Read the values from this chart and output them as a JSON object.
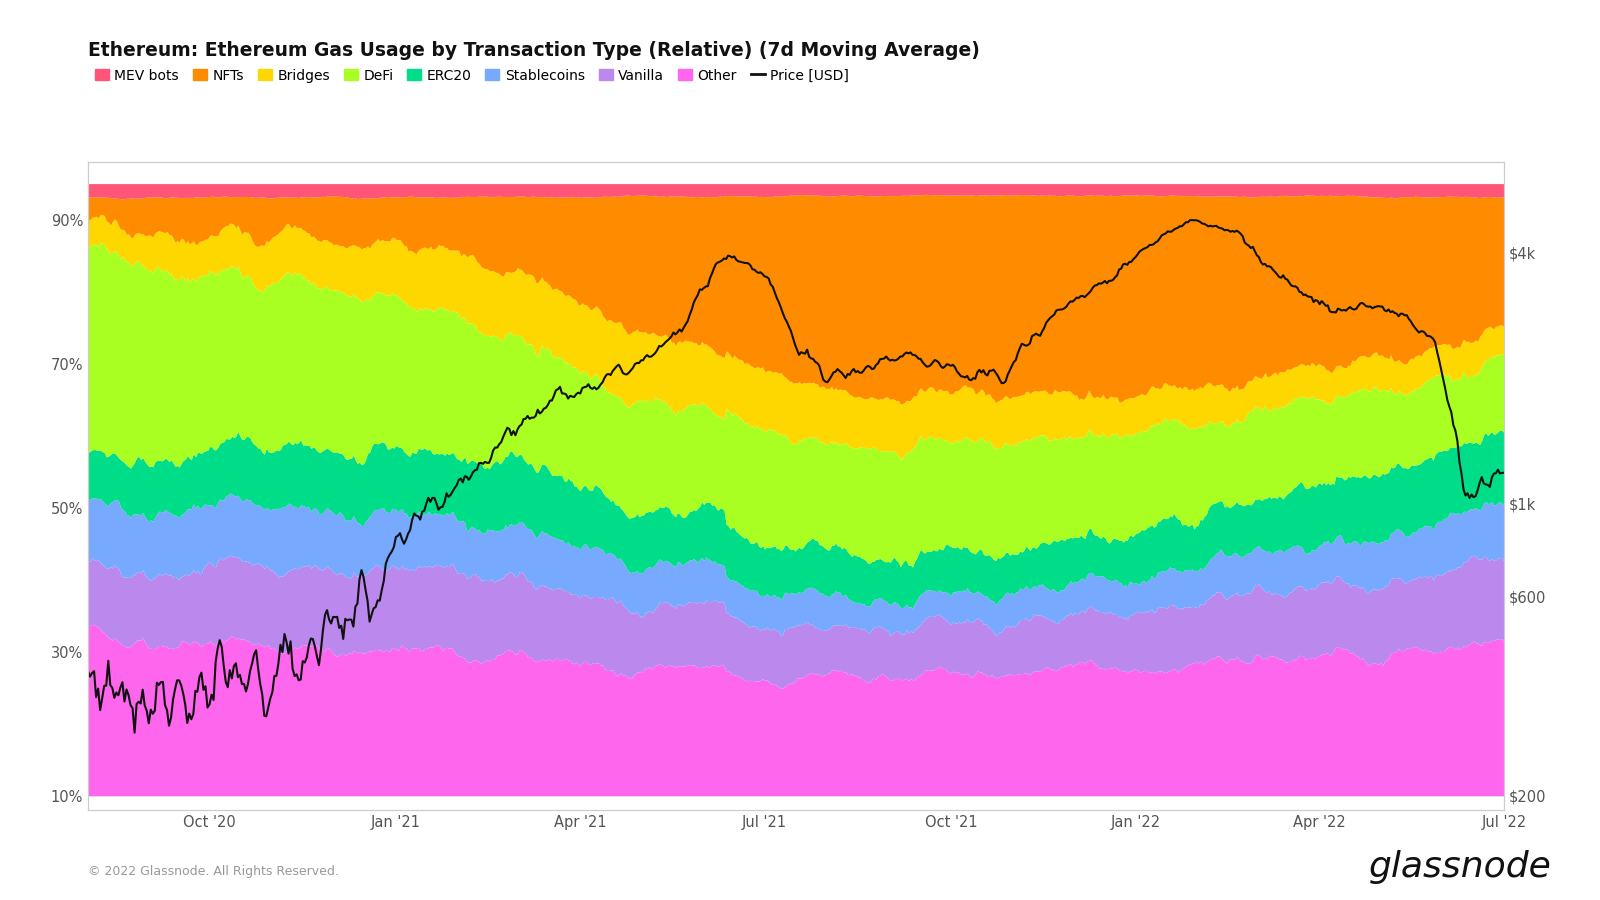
{
  "title": "Ethereum: Ethereum Gas Usage by Transaction Type (Relative) (7d Moving Average)",
  "legend_items": [
    "MEV bots",
    "NFTs",
    "Bridges",
    "DeFi",
    "ERC20",
    "Stablecoins",
    "Vanilla",
    "Other",
    "Price [USD]"
  ],
  "colors": {
    "MEV bots": "#FF5577",
    "NFTs": "#FF8C00",
    "Bridges": "#FFD700",
    "DeFi": "#AAFF22",
    "ERC20": "#00DD88",
    "Stablecoins": "#77AAFF",
    "Vanilla": "#BB88EE",
    "Other": "#FF66EE",
    "Price": "#111111"
  },
  "y_left_ticks": [
    "10%",
    "30%",
    "50%",
    "70%",
    "90%"
  ],
  "y_left_values": [
    10,
    30,
    50,
    70,
    90
  ],
  "x_ticks": [
    "Oct '20",
    "Jan '21",
    "Apr '21",
    "Jul '21",
    "Oct '21",
    "Jan '22",
    "Apr '22",
    "Jul '22"
  ],
  "footer_left": "© 2022 Glassnode. All Rights Reserved.",
  "footer_right": "glassnode",
  "background_color": "#FFFFFF",
  "plot_bg_color": "#FFFFFF",
  "border_color": "#CCCCCC"
}
